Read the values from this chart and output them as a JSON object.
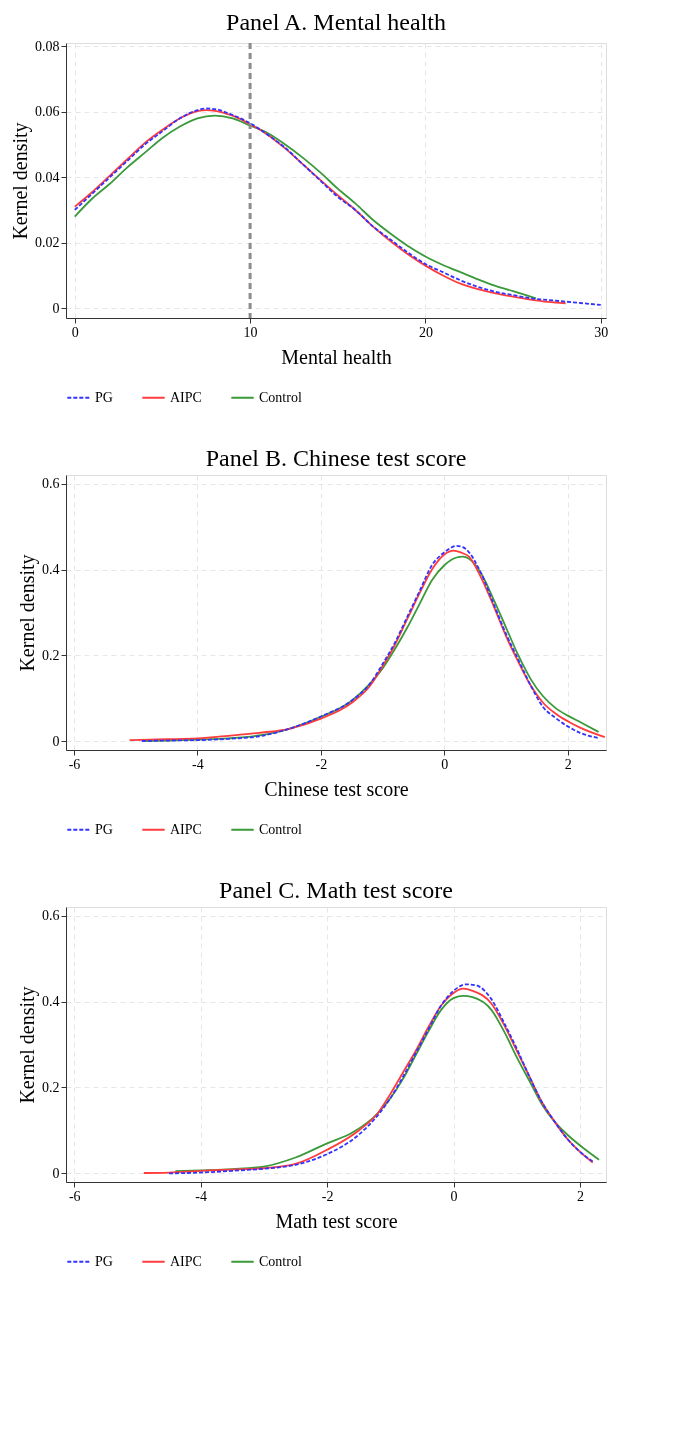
{
  "chart_data": [
    {
      "type": "line",
      "title": "Panel A. Mental health",
      "xlabel": "Mental health",
      "ylabel": "Kernel density",
      "xlim": [
        -0.5,
        30.3
      ],
      "ylim": [
        -0.003,
        0.081
      ],
      "xticks": [
        0,
        10,
        20,
        30
      ],
      "yticks": [
        0,
        0.02,
        0.04,
        0.06,
        0.08
      ],
      "grid": true,
      "legend": "bottom",
      "line_style": "solid",
      "ref_lines": [
        {
          "axis": "x",
          "value": 10,
          "color": "#8c8c8c",
          "line_style": "dashed"
        }
      ],
      "series": [
        {
          "name": "PG",
          "color": "#3333ff",
          "line_style": "dashed",
          "x": [
            0,
            1,
            2,
            3,
            4,
            5,
            6,
            7,
            7.5,
            8,
            9,
            10,
            11,
            12,
            13,
            14,
            15,
            16,
            17,
            18,
            19,
            20,
            21,
            22,
            23,
            24,
            25,
            26,
            27,
            28,
            29,
            30
          ],
          "values": [
            0.03,
            0.035,
            0.04,
            0.045,
            0.05,
            0.054,
            0.058,
            0.0605,
            0.061,
            0.0608,
            0.059,
            0.0565,
            0.053,
            0.049,
            0.044,
            0.039,
            0.034,
            0.03,
            0.025,
            0.021,
            0.017,
            0.0135,
            0.011,
            0.0085,
            0.0065,
            0.005,
            0.004,
            0.003,
            0.0025,
            0.002,
            0.0015,
            0.001
          ]
        },
        {
          "name": "AIPC",
          "color": "#ff3b3b",
          "x": [
            0,
            1,
            2,
            3,
            4,
            5,
            6,
            7,
            7.5,
            8,
            9,
            10,
            11,
            12,
            13,
            14,
            15,
            16,
            17,
            18,
            19,
            20,
            21,
            22,
            23,
            24,
            25,
            26,
            27,
            28
          ],
          "values": [
            0.031,
            0.0355,
            0.0405,
            0.0455,
            0.0505,
            0.0545,
            0.058,
            0.0602,
            0.0605,
            0.0603,
            0.0588,
            0.0562,
            0.053,
            0.0488,
            0.044,
            0.0392,
            0.0345,
            0.03,
            0.025,
            0.0205,
            0.0165,
            0.013,
            0.01,
            0.0075,
            0.0058,
            0.0045,
            0.0035,
            0.0026,
            0.0019,
            0.0015
          ]
        },
        {
          "name": "Control",
          "color": "#3a9a3a",
          "x": [
            0,
            1,
            2,
            3,
            4,
            5,
            6,
            7,
            8,
            9,
            10,
            11,
            12,
            13,
            14,
            15,
            16,
            17,
            18,
            19,
            20,
            21,
            22,
            23,
            24,
            25,
            26,
            26.3
          ],
          "values": [
            0.028,
            0.0335,
            0.038,
            0.043,
            0.0475,
            0.052,
            0.0555,
            0.058,
            0.0588,
            0.058,
            0.0558,
            0.0535,
            0.05,
            0.046,
            0.0415,
            0.0365,
            0.032,
            0.027,
            0.0228,
            0.019,
            0.0158,
            0.0132,
            0.011,
            0.0088,
            0.0068,
            0.0052,
            0.0035,
            0.003
          ]
        }
      ]
    },
    {
      "type": "line",
      "title": "Panel B. Chinese test score",
      "xlabel": "Chinese test score",
      "ylabel": "Kernel density",
      "xlim": [
        -6.13,
        2.62
      ],
      "ylim": [
        -0.02,
        0.62
      ],
      "xticks": [
        -6,
        -4,
        -2,
        0,
        2
      ],
      "yticks": [
        0,
        0.2,
        0.4,
        0.6
      ],
      "grid": true,
      "legend": "bottom",
      "line_style": "solid",
      "series": [
        {
          "name": "PG",
          "color": "#3333ff",
          "line_style": "dashed",
          "x": [
            -4.9,
            -4.5,
            -4,
            -3.5,
            -3,
            -2.5,
            -2,
            -1.5,
            -1.2,
            -1,
            -0.8,
            -0.6,
            -0.4,
            -0.2,
            0,
            0.1,
            0.2,
            0.3,
            0.4,
            0.6,
            0.8,
            1,
            1.2,
            1.4,
            1.6,
            1.8,
            2,
            2.2,
            2.5
          ],
          "values": [
            0.001,
            0.002,
            0.003,
            0.006,
            0.012,
            0.03,
            0.058,
            0.095,
            0.135,
            0.18,
            0.23,
            0.29,
            0.35,
            0.41,
            0.44,
            0.45,
            0.455,
            0.452,
            0.44,
            0.39,
            0.32,
            0.25,
            0.19,
            0.13,
            0.08,
            0.055,
            0.035,
            0.02,
            0.008
          ]
        },
        {
          "name": "AIPC",
          "color": "#ff3b3b",
          "x": [
            -5.1,
            -4.5,
            -4,
            -3.5,
            -3,
            -2.5,
            -2,
            -1.5,
            -1.2,
            -1,
            -0.8,
            -0.6,
            -0.4,
            -0.2,
            0,
            0.15,
            0.3,
            0.4,
            0.6,
            0.8,
            1,
            1.2,
            1.4,
            1.6,
            1.8,
            2,
            2.2,
            2.6
          ],
          "values": [
            0.003,
            0.005,
            0.007,
            0.013,
            0.02,
            0.03,
            0.053,
            0.09,
            0.13,
            0.175,
            0.225,
            0.285,
            0.345,
            0.4,
            0.435,
            0.444,
            0.438,
            0.43,
            0.38,
            0.315,
            0.245,
            0.185,
            0.13,
            0.09,
            0.065,
            0.047,
            0.032,
            0.01
          ]
        },
        {
          "name": "Control",
          "color": "#3a9a3a",
          "x": [
            -4.9,
            -4.5,
            -4,
            -3.5,
            -3,
            -2.5,
            -2,
            -1.5,
            -1.2,
            -1,
            -0.8,
            -0.6,
            -0.4,
            -0.2,
            0,
            0.2,
            0.3,
            0.4,
            0.6,
            0.8,
            1,
            1.2,
            1.4,
            1.6,
            1.8,
            2,
            2.2,
            2.5
          ],
          "values": [
            0.001,
            0.002,
            0.004,
            0.007,
            0.014,
            0.03,
            0.057,
            0.095,
            0.135,
            0.17,
            0.215,
            0.265,
            0.32,
            0.375,
            0.41,
            0.428,
            0.43,
            0.425,
            0.39,
            0.33,
            0.265,
            0.2,
            0.145,
            0.105,
            0.078,
            0.06,
            0.045,
            0.022
          ]
        }
      ]
    },
    {
      "type": "line",
      "title": "Panel C. Math test score",
      "xlabel": "Math test score",
      "ylabel": "Kernel density",
      "xlim": [
        -6.13,
        2.41
      ],
      "ylim": [
        -0.02,
        0.62
      ],
      "xticks": [
        -6,
        -4,
        -2,
        0,
        2
      ],
      "yticks": [
        0,
        0.2,
        0.4,
        0.6
      ],
      "grid": true,
      "legend": "bottom",
      "line_style": "solid",
      "series": [
        {
          "name": "PG",
          "color": "#3333ff",
          "line_style": "dashed",
          "x": [
            -4.5,
            -4,
            -3.5,
            -3,
            -2.5,
            -2,
            -1.5,
            -1.2,
            -1,
            -0.8,
            -0.6,
            -0.4,
            -0.2,
            0,
            0.2,
            0.35,
            0.6,
            0.8,
            1,
            1.2,
            1.4,
            1.6,
            1.8,
            2,
            2.2
          ],
          "values": [
            0.0,
            0.002,
            0.006,
            0.011,
            0.02,
            0.045,
            0.09,
            0.135,
            0.175,
            0.225,
            0.28,
            0.335,
            0.39,
            0.425,
            0.44,
            0.438,
            0.405,
            0.35,
            0.29,
            0.225,
            0.165,
            0.12,
            0.08,
            0.05,
            0.028
          ]
        },
        {
          "name": "AIPC",
          "color": "#ff3b3b",
          "x": [
            -4.9,
            -4.5,
            -4,
            -3.5,
            -3,
            -2.5,
            -2,
            -1.5,
            -1.2,
            -1,
            -0.8,
            -0.6,
            -0.4,
            -0.2,
            0,
            0.15,
            0.3,
            0.6,
            0.8,
            1,
            1.2,
            1.4,
            1.6,
            1.8,
            2,
            2.2
          ],
          "values": [
            0.001,
            0.002,
            0.006,
            0.009,
            0.012,
            0.022,
            0.055,
            0.1,
            0.14,
            0.185,
            0.235,
            0.285,
            0.34,
            0.39,
            0.42,
            0.43,
            0.425,
            0.395,
            0.345,
            0.285,
            0.225,
            0.165,
            0.12,
            0.08,
            0.05,
            0.025
          ]
        },
        {
          "name": "Control",
          "color": "#3a9a3a",
          "x": [
            -4.4,
            -4,
            -3.5,
            -3,
            -2.5,
            -2,
            -1.6,
            -1.2,
            -1,
            -0.8,
            -0.6,
            -0.4,
            -0.2,
            0,
            0.15,
            0.3,
            0.6,
            0.8,
            1,
            1.2,
            1.4,
            1.6,
            1.8,
            2,
            2.3
          ],
          "values": [
            0.005,
            0.007,
            0.01,
            0.016,
            0.037,
            0.07,
            0.095,
            0.14,
            0.175,
            0.22,
            0.275,
            0.33,
            0.38,
            0.408,
            0.413,
            0.41,
            0.38,
            0.33,
            0.27,
            0.215,
            0.16,
            0.12,
            0.09,
            0.065,
            0.032
          ]
        }
      ]
    }
  ]
}
